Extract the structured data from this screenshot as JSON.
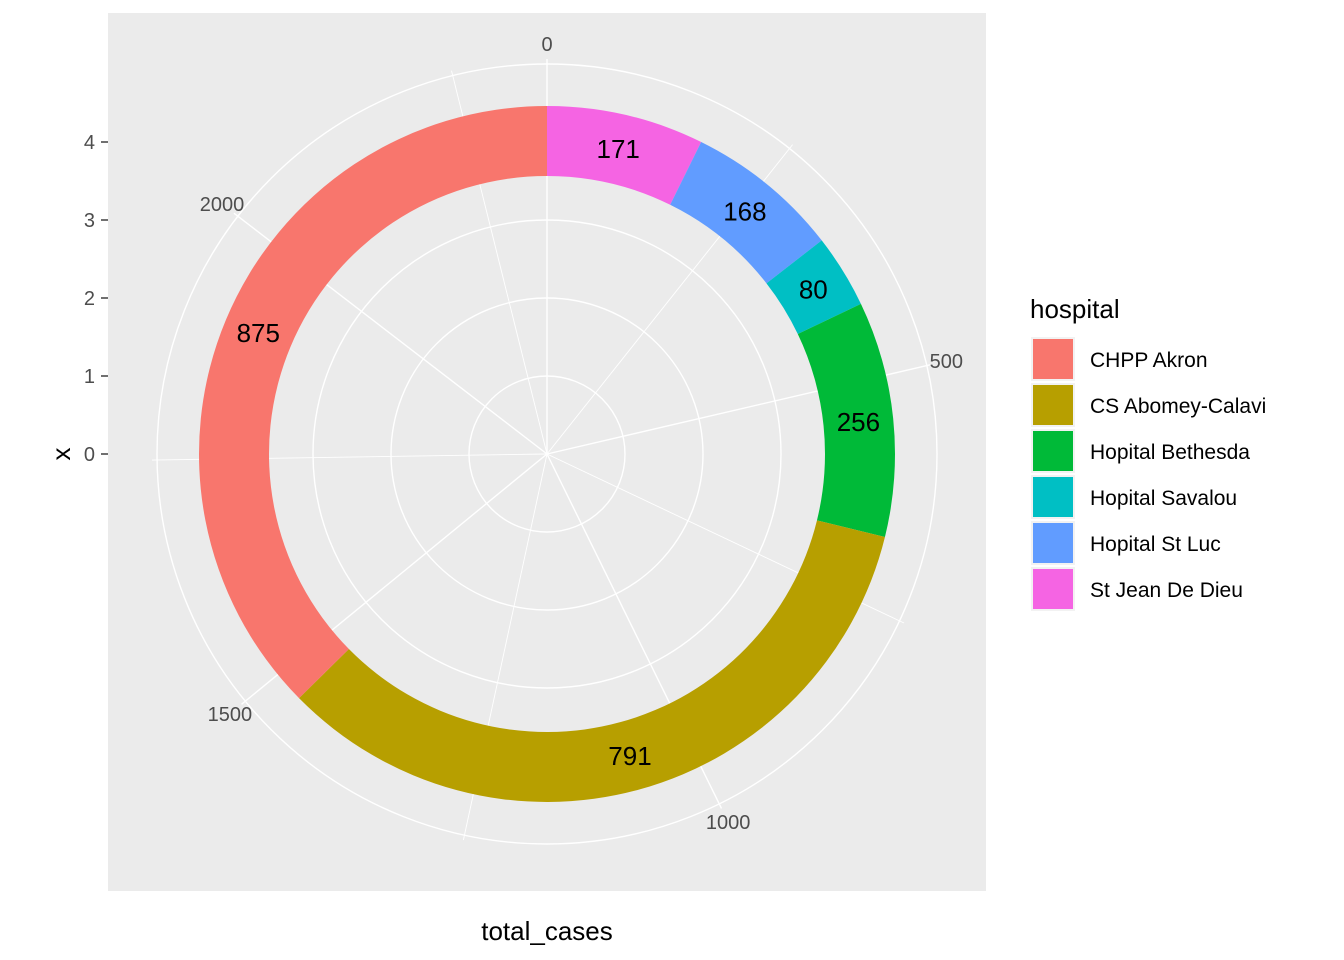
{
  "chart_data": {
    "type": "pie",
    "style": "donut (polar coordinates, stacked bar)",
    "x_axis_title": "total_cases",
    "y_axis_title": "x",
    "y_ticks": [
      "0",
      "1",
      "2",
      "3",
      "4"
    ],
    "theta_ticks": [
      "0",
      "500",
      "1000",
      "1500",
      "2000"
    ],
    "theta_range": [
      0,
      2341
    ],
    "theta_direction": "clockwise from top",
    "legend": {
      "title": "hospital",
      "position": "right"
    },
    "grid": true,
    "slices": [
      {
        "name": "CHPP Akron",
        "value": 875,
        "label": "875",
        "color": "#F8766D"
      },
      {
        "name": "CS Abomey-Calavi",
        "value": 791,
        "label": "791",
        "color": "#B79F00"
      },
      {
        "name": "Hopital Bethesda",
        "value": 256,
        "label": "256",
        "color": "#00BA38"
      },
      {
        "name": "Hopital Savalou",
        "value": 80,
        "label": "80",
        "color": "#00BFC4"
      },
      {
        "name": "Hopital St Luc",
        "value": 168,
        "label": "168",
        "color": "#619CFF"
      },
      {
        "name": "St Jean De Dieu",
        "value": 171,
        "label": "171",
        "color": "#F564E3"
      }
    ],
    "stack_order_clockwise": [
      "St Jean De Dieu",
      "Hopital St Luc",
      "Hopital Savalou",
      "Hopital Bethesda",
      "CS Abomey-Calavi",
      "CHPP Akron"
    ]
  }
}
